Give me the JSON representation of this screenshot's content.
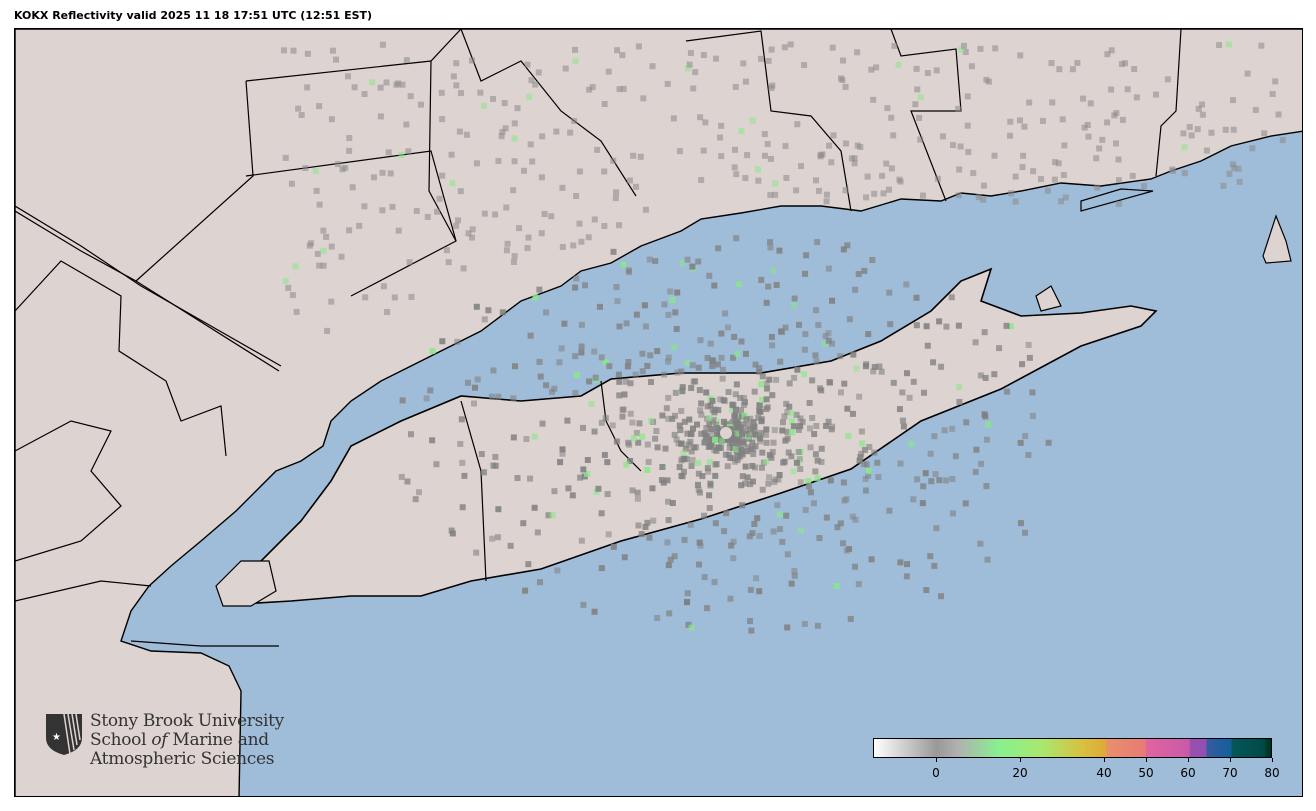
{
  "title": "KOKX Reflectivity valid 2025 11 18 17:51 UTC (12:51 EST)",
  "map": {
    "radar_site": "KOKX",
    "colors": {
      "water": "#9fbcd8",
      "land": "#ddd3d0",
      "boundary": "#000000"
    }
  },
  "logo": {
    "line1": "Stony Brook University",
    "line2_pre": "School ",
    "line2_italic": "of",
    "line2_post": " Marine and",
    "line3": "Atmospheric Sciences"
  },
  "colorbar": {
    "range": [
      -15,
      80
    ],
    "ticks": [
      "0",
      "20",
      "40",
      "50",
      "60",
      "70",
      "80"
    ],
    "tick_values": [
      0,
      20,
      40,
      50,
      60,
      70,
      80
    ],
    "stops": [
      {
        "v": -15,
        "c": "#ffffff"
      },
      {
        "v": 0,
        "c": "#999999"
      },
      {
        "v": 5,
        "c": "#b0b0b0"
      },
      {
        "v": 15,
        "c": "#88f090"
      },
      {
        "v": 25,
        "c": "#a8e870"
      },
      {
        "v": 35,
        "c": "#d8c040"
      },
      {
        "v": 40.5,
        "c": "#e0a838"
      },
      {
        "v": 40.6,
        "c": "#e89068"
      },
      {
        "v": 50,
        "c": "#e87a78"
      },
      {
        "v": 50.1,
        "c": "#e064a0"
      },
      {
        "v": 60.5,
        "c": "#c85aa8"
      },
      {
        "v": 60.6,
        "c": "#9a50b0"
      },
      {
        "v": 64.5,
        "c": "#9050b0"
      },
      {
        "v": 64.6,
        "c": "#3a5aa0"
      },
      {
        "v": 70.5,
        "c": "#10609a"
      },
      {
        "v": 70.6,
        "c": "#055858"
      },
      {
        "v": 78.5,
        "c": "#004848"
      },
      {
        "v": 78.6,
        "c": "#00402a"
      },
      {
        "v": 80,
        "c": "#003020"
      }
    ]
  }
}
